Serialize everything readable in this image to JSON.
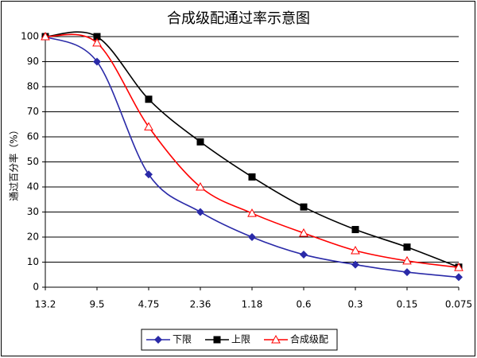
{
  "chart_data": {
    "type": "line",
    "title": "合成级配通过率示意图",
    "y_label": "通过百分率（%）",
    "categories": [
      "13.2",
      "9.5",
      "4.75",
      "2.36",
      "1.18",
      "0.6",
      "0.3",
      "0.15",
      "0.075"
    ],
    "series": [
      {
        "name": "下限",
        "color": "#2a2aa8",
        "marker": "diamond",
        "values": [
          100,
          90,
          45,
          30,
          20,
          13,
          9,
          6,
          4
        ]
      },
      {
        "name": "上限",
        "color": "#000000",
        "marker": "square",
        "values": [
          100,
          100,
          75,
          58,
          44,
          32,
          23,
          16,
          8
        ]
      },
      {
        "name": "合成级配",
        "color": "#ff0000",
        "marker": "triangle",
        "values": [
          100,
          97.5,
          64,
          40,
          29.5,
          21.6,
          14.6,
          10.5,
          7.9
        ]
      }
    ],
    "ylim": [
      0,
      100
    ],
    "yticks": [
      0,
      10,
      20,
      30,
      40,
      50,
      60,
      70,
      80,
      90,
      100
    ],
    "grid": true,
    "smooth": true,
    "legend": "bottom"
  }
}
